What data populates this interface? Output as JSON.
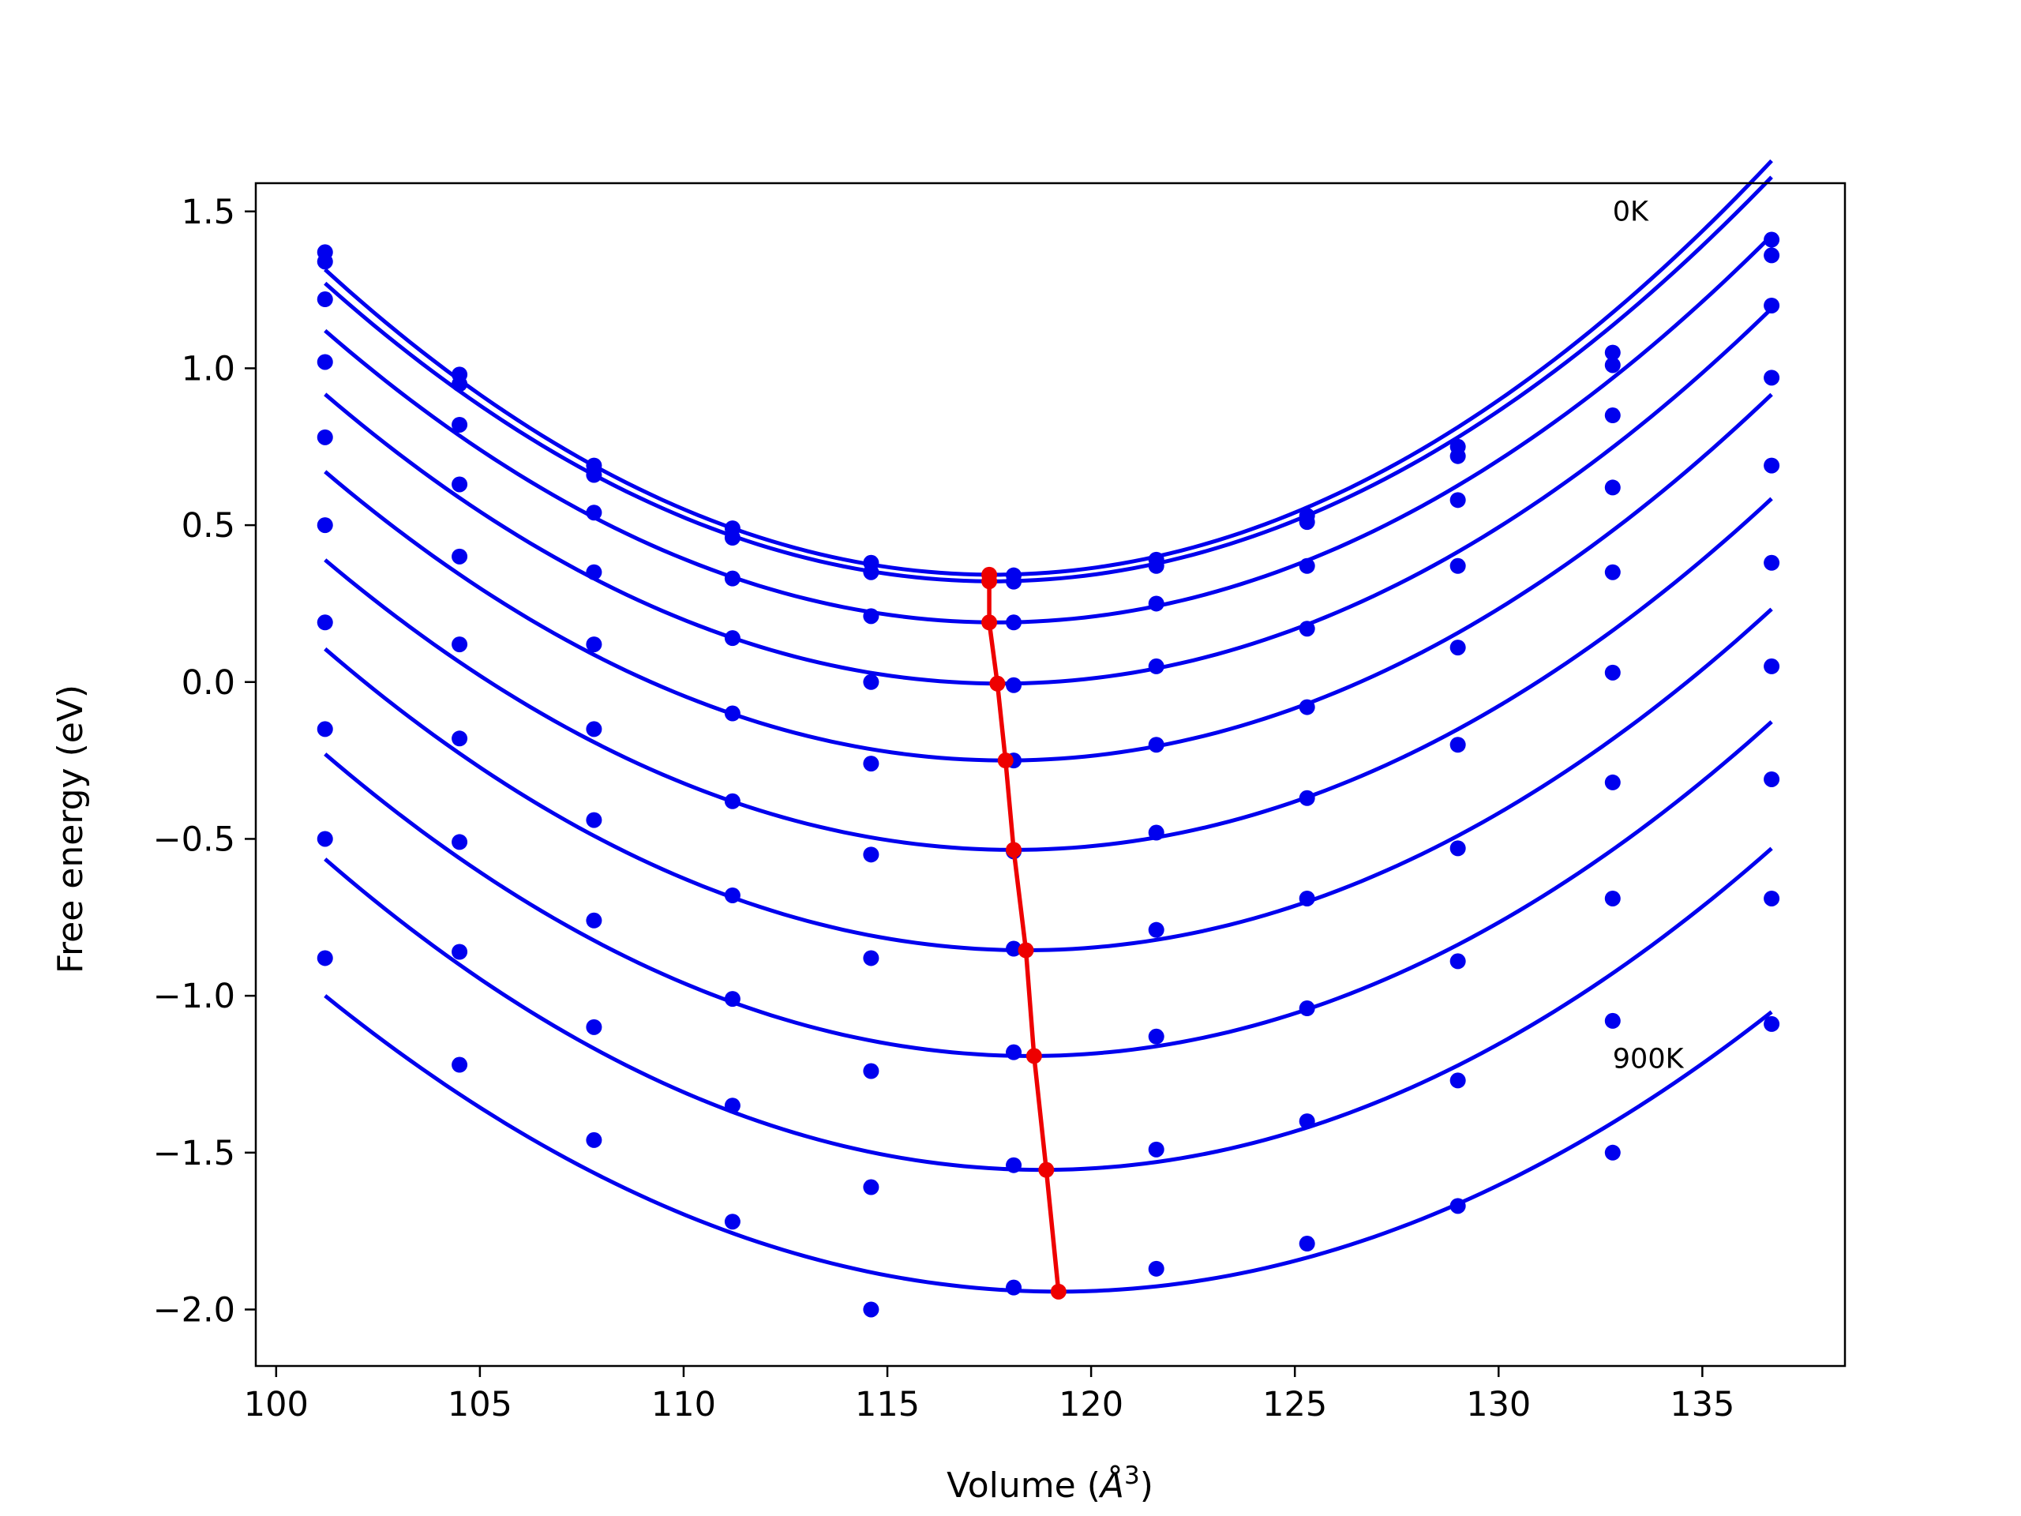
{
  "chart_data": {
    "type": "scatter",
    "title": "",
    "xlabel": "Volume (",
    "xlabel_unit": "Å",
    "xlabel_exp": "3",
    "xlabel_close": ")",
    "ylabel": "Free energy (eV)",
    "xlim": [
      99.5,
      138.5
    ],
    "ylim": [
      -2.18,
      1.59
    ],
    "xticks": [
      100,
      105,
      110,
      115,
      120,
      125,
      130,
      135
    ],
    "xtick_labels": [
      "100",
      "105",
      "110",
      "115",
      "120",
      "125",
      "130",
      "135"
    ],
    "yticks": [
      -2.0,
      -1.5,
      -1.0,
      -0.5,
      0.0,
      0.5,
      1.0,
      1.5
    ],
    "ytick_labels": [
      "−2.0",
      "−1.5",
      "−1.0",
      "−0.5",
      "0.0",
      "0.5",
      "1.0",
      "1.5"
    ],
    "grid": false,
    "annotations": [
      {
        "text": "0K",
        "x": 132.8,
        "y": 1.47
      },
      {
        "text": "900K",
        "x": 132.8,
        "y": -1.23
      }
    ],
    "x": [
      101.2,
      104.5,
      107.8,
      111.2,
      114.6,
      118.1,
      121.6,
      125.3,
      129.0,
      132.8,
      136.7
    ],
    "series": [
      {
        "points": [
          1.37,
          0.98,
          0.69,
          0.49,
          0.38,
          0.34,
          0.39,
          0.53,
          0.75,
          1.05,
          1.41
        ],
        "fit_a": 0.003617,
        "fit_v0": 117.6,
        "fit_e0": 0.342
      },
      {
        "points": [
          1.34,
          0.95,
          0.66,
          0.46,
          0.35,
          0.32,
          0.37,
          0.51,
          0.72,
          1.01,
          1.36
        ],
        "fit_a": 0.003532,
        "fit_v0": 117.6,
        "fit_e0": 0.321
      },
      {
        "points": [
          1.22,
          0.82,
          0.54,
          0.33,
          0.21,
          0.19,
          0.25,
          0.37,
          0.58,
          0.85,
          1.2
        ],
        "fit_a": 0.003416,
        "fit_v0": 117.7,
        "fit_e0": 0.19
      },
      {
        "points": [
          1.02,
          0.63,
          0.35,
          0.14,
          0.0,
          -0.01,
          0.05,
          0.17,
          0.37,
          0.62,
          0.97
        ],
        "fit_a": 0.003347,
        "fit_v0": 117.8,
        "fit_e0": -0.005
      },
      {
        "points": [
          0.78,
          0.4,
          0.12,
          -0.1,
          -0.26,
          -0.25,
          -0.2,
          -0.08,
          0.11,
          0.35,
          0.69
        ],
        "fit_a": 0.003301,
        "fit_v0": 117.9,
        "fit_e0": -0.25
      },
      {
        "points": [
          0.5,
          0.12,
          -0.15,
          -0.38,
          -0.55,
          -0.54,
          -0.48,
          -0.37,
          -0.2,
          0.03,
          0.38
        ],
        "fit_a": 0.003236,
        "fit_v0": 118.1,
        "fit_e0": -0.535
      },
      {
        "points": [
          0.19,
          -0.18,
          -0.44,
          -0.68,
          -0.88,
          -0.85,
          -0.79,
          -0.69,
          -0.53,
          -0.32,
          0.05
        ],
        "fit_a": 0.003247,
        "fit_v0": 118.4,
        "fit_e0": -0.855
      },
      {
        "points": [
          -0.15,
          -0.51,
          -0.76,
          -1.01,
          -1.24,
          -1.18,
          -1.13,
          -1.04,
          -0.89,
          -0.69,
          -0.31
        ],
        "fit_a": 0.003216,
        "fit_v0": 118.5,
        "fit_e0": -1.192
      },
      {
        "points": [
          -0.5,
          -0.86,
          -1.1,
          -1.35,
          -1.61,
          -1.54,
          -1.49,
          -1.4,
          -1.27,
          -1.08,
          -0.69
        ],
        "fit_a": 0.003198,
        "fit_v0": 118.8,
        "fit_e0": -1.555
      },
      {
        "points": [
          -0.88,
          -1.22,
          -1.46,
          -1.72,
          -2.0,
          -1.93,
          -1.87,
          -1.79,
          -1.67,
          -1.5,
          -1.09
        ],
        "fit_a": 0.002911,
        "fit_v0": 119.2,
        "fit_e0": -1.943
      }
    ],
    "minima_line": {
      "x": [
        117.5,
        117.5,
        117.5,
        117.7,
        117.9,
        118.1,
        118.4,
        118.6,
        118.9,
        119.2
      ],
      "y": [
        0.342,
        0.321,
        0.19,
        -0.005,
        -0.25,
        -0.535,
        -0.855,
        -1.192,
        -1.555,
        -1.943
      ]
    },
    "colors": {
      "series": "#0000ee",
      "minima": "#ee0000",
      "axes": "#000000"
    }
  }
}
